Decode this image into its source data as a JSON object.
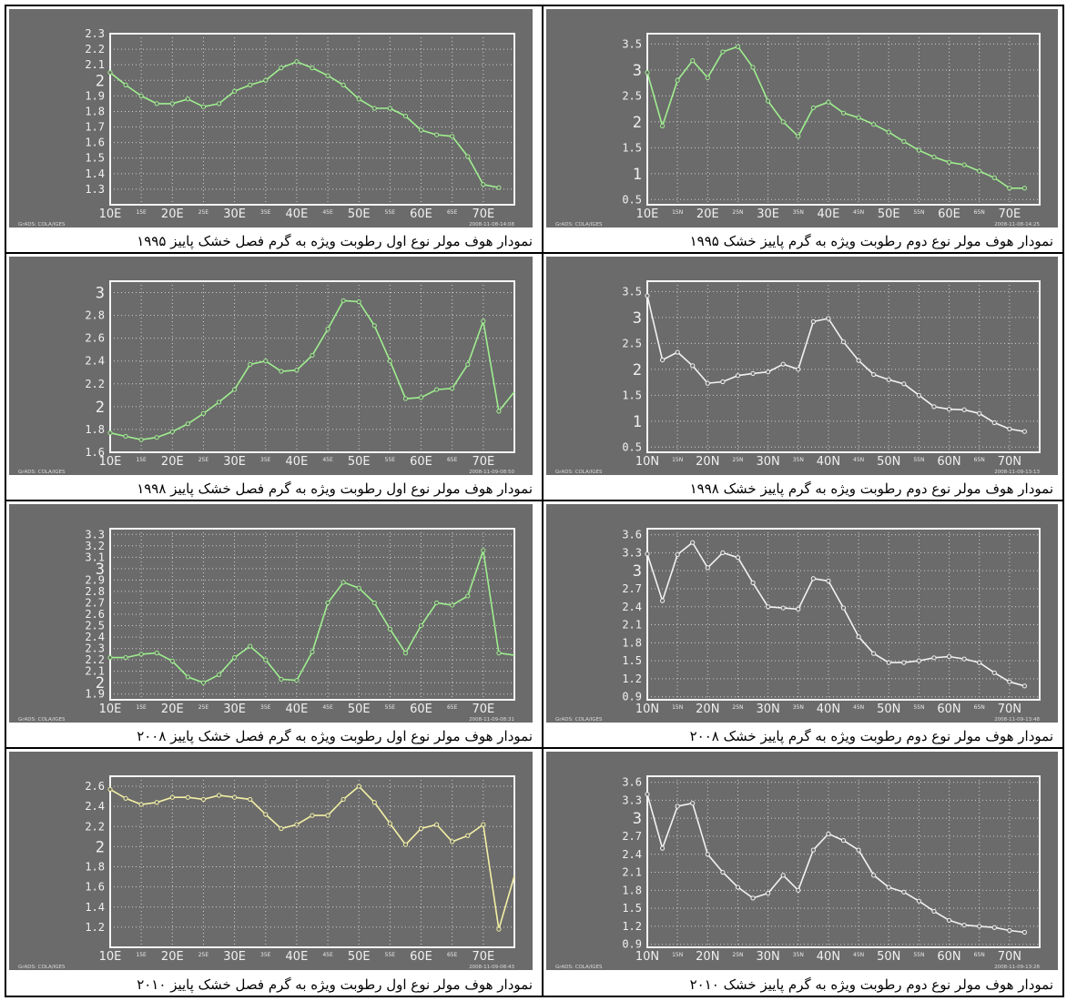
{
  "charts": [
    {
      "caption": "نمودار هوف مولر نوع اول رطوبت ویژه به گرم فصل خشک پاییز ۱۹۹۵",
      "credit": "GrADS: COLA/IGES",
      "stamp": "2008-11-08-14:08",
      "color": "#9fef8f",
      "chart_data": {
        "type": "line",
        "ylim": [
          1.2,
          2.3
        ],
        "yticks": [
          "1.3",
          "1.4",
          "1.5",
          "1.6",
          "1.7",
          "1.8",
          "1.9",
          "2",
          "2.1",
          "2.2",
          "2.3"
        ],
        "ytick_values": [
          1.3,
          1.4,
          1.5,
          1.6,
          1.7,
          1.8,
          1.9,
          2,
          2.1,
          2.2,
          2.3
        ],
        "xlim": [
          10,
          72.5
        ],
        "xmajor": [
          "10E",
          "20E",
          "30E",
          "40E",
          "50E",
          "60E",
          "70E"
        ],
        "xminor": [
          "15E",
          "25E",
          "35E",
          "45E",
          "55E",
          "65E"
        ],
        "x": [
          10,
          12.5,
          15,
          17.5,
          20,
          22.5,
          25,
          27.5,
          30,
          32.5,
          35,
          37.5,
          40,
          42.5,
          45,
          47.5,
          50,
          52.5,
          55,
          57.5,
          60,
          62.5,
          65,
          67.5,
          70,
          72.5
        ],
        "values": [
          2.05,
          1.97,
          1.9,
          1.85,
          1.85,
          1.88,
          1.83,
          1.85,
          1.93,
          1.97,
          2.0,
          2.08,
          2.12,
          2.08,
          2.03,
          1.97,
          1.88,
          1.82,
          1.82,
          1.77,
          1.68,
          1.65,
          1.64,
          1.51,
          1.33,
          1.31
        ]
      }
    },
    {
      "caption": "نمودار هوف مولر نوع دوم رطوبت ویژه به گرم پاییز خشک ۱۹۹۵",
      "credit": "GrADS: COLA/IGES",
      "stamp": "2008-11-08-14:25",
      "color": "#9fef8f",
      "chart_data": {
        "type": "line",
        "ylim": [
          0.4,
          3.7
        ],
        "yticks": [
          "0.5",
          "1",
          "1.5",
          "2",
          "2.5",
          "3",
          "3.5"
        ],
        "ytick_values": [
          0.5,
          1,
          1.5,
          2,
          2.5,
          3,
          3.5
        ],
        "xlim": [
          10,
          72.5
        ],
        "xmajor": [
          "10E",
          "20E",
          "30E",
          "40E",
          "50E",
          "60E",
          "70E"
        ],
        "xminor": [
          "15N",
          "25N",
          "35N",
          "45N",
          "55N",
          "65N"
        ],
        "x": [
          10,
          12.5,
          15,
          17.5,
          20,
          22.5,
          25,
          27.5,
          30,
          32.5,
          35,
          37.5,
          40,
          42.5,
          45,
          47.5,
          50,
          52.5,
          55,
          57.5,
          60,
          62.5,
          65,
          67.5,
          70,
          72.5
        ],
        "values": [
          2.95,
          1.92,
          2.8,
          3.18,
          2.85,
          3.35,
          3.45,
          3.05,
          2.4,
          2.0,
          1.72,
          2.27,
          2.38,
          2.17,
          2.08,
          1.95,
          1.8,
          1.62,
          1.45,
          1.32,
          1.22,
          1.17,
          1.05,
          0.92,
          0.72,
          0.72
        ]
      }
    },
    {
      "caption": "نمودار هوف مولر نوع اول رطوبت ویژه به گرم فصل خشک پاییز ۱۹۹۸",
      "credit": "GrADS: COLA/IGES",
      "stamp": "2008-11-09-08:50",
      "color": "#9fef8f",
      "chart_data": {
        "type": "line",
        "ylim": [
          1.6,
          3.1
        ],
        "yticks": [
          "1.6",
          "1.8",
          "2",
          "2.2",
          "2.4",
          "2.6",
          "2.8",
          "3"
        ],
        "ytick_values": [
          1.6,
          1.8,
          2,
          2.2,
          2.4,
          2.6,
          2.8,
          3
        ],
        "xlim": [
          10,
          72.5
        ],
        "xmajor": [
          "10E",
          "20E",
          "30E",
          "40E",
          "50E",
          "60E",
          "70E"
        ],
        "xminor": [
          "15E",
          "25E",
          "35E",
          "45E",
          "55E",
          "65E"
        ],
        "x": [
          10,
          12.5,
          15,
          17.5,
          20,
          22.5,
          25,
          27.5,
          30,
          32.5,
          35,
          37.5,
          40,
          42.5,
          45,
          47.5,
          50,
          52.5,
          55,
          57.5,
          60,
          62.5,
          65,
          67.5,
          70,
          72.5
        ],
        "values": [
          1.77,
          1.74,
          1.71,
          1.73,
          1.78,
          1.85,
          1.94,
          2.04,
          2.15,
          2.37,
          2.4,
          2.31,
          2.32,
          2.45,
          2.68,
          2.93,
          2.92,
          2.71,
          2.4,
          2.07,
          2.08,
          2.15,
          2.16,
          2.37,
          2.75,
          1.96
        ],
        "tail": 2.13
      }
    },
    {
      "caption": "نمودار هوف مولر نوع دوم رطوبت ویژه به گرم پاییز خشک ۱۹۹۸",
      "credit": "GrADS: COLA/IGES",
      "stamp": "2008-11-09-13:13",
      "color": "#f2f2f2",
      "chart_data": {
        "type": "line",
        "ylim": [
          0.4,
          3.7
        ],
        "yticks": [
          "0.5",
          "1",
          "1.5",
          "2",
          "2.5",
          "3",
          "3.5"
        ],
        "ytick_values": [
          0.5,
          1,
          1.5,
          2,
          2.5,
          3,
          3.5
        ],
        "xlim": [
          10,
          72.5
        ],
        "xmajor": [
          "10N",
          "20N",
          "30N",
          "40N",
          "50N",
          "60N",
          "70N"
        ],
        "xminor": [
          "15N",
          "25N",
          "35N",
          "45N",
          "55N",
          "65N"
        ],
        "x": [
          10,
          12.5,
          15,
          17.5,
          20,
          22.5,
          25,
          27.5,
          30,
          32.5,
          35,
          37.5,
          40,
          42.5,
          45,
          47.5,
          50,
          52.5,
          55,
          57.5,
          60,
          62.5,
          65,
          67.5,
          70,
          72.5
        ],
        "values": [
          3.42,
          2.18,
          2.33,
          2.07,
          1.73,
          1.76,
          1.88,
          1.92,
          1.95,
          2.1,
          2.0,
          2.92,
          2.98,
          2.53,
          2.17,
          1.9,
          1.8,
          1.72,
          1.5,
          1.28,
          1.23,
          1.22,
          1.15,
          0.97,
          0.85,
          0.8
        ]
      }
    },
    {
      "caption": "نمودار هوف مولر نوع اول رطوبت ویژه به گرم فصل خشک پاییز ۲۰۰۸",
      "credit": "GrADS: COLA/IGES",
      "stamp": "2008-11-09-08:31",
      "color": "#9fef8f",
      "chart_data": {
        "type": "line",
        "ylim": [
          1.85,
          3.35
        ],
        "yticks": [
          "1.9",
          "2",
          "2.1",
          "2.2",
          "2.3",
          "2.4",
          "2.5",
          "2.6",
          "2.7",
          "2.8",
          "2.9",
          "3",
          "3.1",
          "3.2",
          "3.3"
        ],
        "ytick_values": [
          1.9,
          2,
          2.1,
          2.2,
          2.3,
          2.4,
          2.5,
          2.6,
          2.7,
          2.8,
          2.9,
          3,
          3.1,
          3.2,
          3.3
        ],
        "xlim": [
          10,
          72.5
        ],
        "xmajor": [
          "10E",
          "20E",
          "30E",
          "40E",
          "50E",
          "60E",
          "70E"
        ],
        "xminor": [
          "15E",
          "25E",
          "35E",
          "45E",
          "55E",
          "65E"
        ],
        "x": [
          10,
          12.5,
          15,
          17.5,
          20,
          22.5,
          25,
          27.5,
          30,
          32.5,
          35,
          37.5,
          40,
          42.5,
          45,
          47.5,
          50,
          52.5,
          55,
          57.5,
          60,
          62.5,
          65,
          67.5,
          70,
          72.5
        ],
        "values": [
          2.22,
          2.22,
          2.25,
          2.26,
          2.19,
          2.05,
          2.0,
          2.07,
          2.22,
          2.32,
          2.2,
          2.03,
          2.02,
          2.27,
          2.7,
          2.88,
          2.83,
          2.7,
          2.47,
          2.26,
          2.5,
          2.7,
          2.68,
          2.76,
          3.16,
          2.26
        ],
        "tail": 2.24
      }
    },
    {
      "caption": "نمودار هوف مولر نوع دوم رطوبت ویژه به گرم پاییز خشک ۲۰۰۸",
      "credit": "GrADS: COLA/IGES",
      "stamp": "2008-11-09-13:48",
      "color": "#f2f2f2",
      "chart_data": {
        "type": "line",
        "ylim": [
          0.85,
          3.7
        ],
        "yticks": [
          "0.9",
          "1.2",
          "1.5",
          "1.8",
          "2.1",
          "2.4",
          "2.7",
          "3",
          "3.3",
          "3.6"
        ],
        "ytick_values": [
          0.9,
          1.2,
          1.5,
          1.8,
          2.1,
          2.4,
          2.7,
          3,
          3.3,
          3.6
        ],
        "xlim": [
          10,
          72.5
        ],
        "xmajor": [
          "10N",
          "20N",
          "30N",
          "40N",
          "50N",
          "60N",
          "70N"
        ],
        "xminor": [
          "15N",
          "25N",
          "35N",
          "45N",
          "55N",
          "65N"
        ],
        "x": [
          10,
          12.5,
          15,
          17.5,
          20,
          22.5,
          25,
          27.5,
          30,
          32.5,
          35,
          37.5,
          40,
          42.5,
          45,
          47.5,
          50,
          52.5,
          55,
          57.5,
          60,
          62.5,
          65,
          67.5,
          70,
          72.5
        ],
        "values": [
          3.28,
          2.5,
          3.27,
          3.47,
          3.05,
          3.3,
          3.22,
          2.8,
          2.4,
          2.38,
          2.36,
          2.87,
          2.83,
          2.38,
          1.9,
          1.62,
          1.47,
          1.47,
          1.5,
          1.55,
          1.57,
          1.53,
          1.47,
          1.3,
          1.15,
          1.08
        ]
      }
    },
    {
      "caption": "نمودار هوف مولر نوع اول رطوبت ویژه به گرم فصل خشک پاییز ۲۰۱۰",
      "credit": "GrADS: COLA/IGES",
      "stamp": "2008-11-09-08:43",
      "color": "#f3f0a6",
      "chart_data": {
        "type": "line",
        "ylim": [
          1.0,
          2.7
        ],
        "yticks": [
          "1.2",
          "1.4",
          "1.6",
          "1.8",
          "2",
          "2.2",
          "2.4",
          "2.6"
        ],
        "ytick_values": [
          1.2,
          1.4,
          1.6,
          1.8,
          2,
          2.2,
          2.4,
          2.6
        ],
        "xlim": [
          10,
          72.5
        ],
        "xmajor": [
          "10E",
          "20E",
          "30E",
          "40E",
          "50E",
          "60E",
          "70E"
        ],
        "xminor": [
          "15E",
          "25E",
          "35E",
          "45E",
          "55E",
          "65E"
        ],
        "x": [
          10,
          12.5,
          15,
          17.5,
          20,
          22.5,
          25,
          27.5,
          30,
          32.5,
          35,
          37.5,
          40,
          42.5,
          45,
          47.5,
          50,
          52.5,
          55,
          57.5,
          60,
          62.5,
          65,
          67.5,
          70,
          72.5
        ],
        "values": [
          2.57,
          2.48,
          2.42,
          2.44,
          2.49,
          2.49,
          2.47,
          2.51,
          2.49,
          2.47,
          2.32,
          2.18,
          2.22,
          2.31,
          2.31,
          2.47,
          2.6,
          2.44,
          2.23,
          2.02,
          2.18,
          2.22,
          2.05,
          2.11,
          2.22,
          1.18
        ],
        "tail": 1.71
      }
    },
    {
      "caption": "نمودار هوف مولر نوع دوم رطوبت ویژه به گرم پاییز خشک ۲۰۱۰",
      "credit": "GrADS: COLA/IGES",
      "stamp": "2008-11-09-13:28",
      "color": "#f2f2f2",
      "chart_data": {
        "type": "line",
        "ylim": [
          0.85,
          3.7
        ],
        "yticks": [
          "0.9",
          "1.2",
          "1.5",
          "1.8",
          "2.1",
          "2.4",
          "2.7",
          "3",
          "3.3",
          "3.6"
        ],
        "ytick_values": [
          0.9,
          1.2,
          1.5,
          1.8,
          2.1,
          2.4,
          2.7,
          3,
          3.3,
          3.6
        ],
        "xlim": [
          10,
          72.5
        ],
        "xmajor": [
          "10N",
          "20N",
          "30N",
          "40N",
          "50N",
          "60N",
          "70N"
        ],
        "xminor": [
          "15N",
          "25N",
          "35N",
          "45N",
          "55N",
          "65N"
        ],
        "x": [
          10,
          12.5,
          15,
          17.5,
          20,
          22.5,
          25,
          27.5,
          30,
          32.5,
          35,
          37.5,
          40,
          42.5,
          45,
          47.5,
          50,
          52.5,
          55,
          57.5,
          60,
          62.5,
          65,
          67.5,
          70,
          72.5
        ],
        "values": [
          3.4,
          2.5,
          3.2,
          3.25,
          2.4,
          2.1,
          1.85,
          1.67,
          1.75,
          2.05,
          1.8,
          2.47,
          2.74,
          2.63,
          2.47,
          2.05,
          1.85,
          1.77,
          1.62,
          1.45,
          1.3,
          1.22,
          1.2,
          1.18,
          1.13,
          1.1
        ]
      }
    }
  ]
}
